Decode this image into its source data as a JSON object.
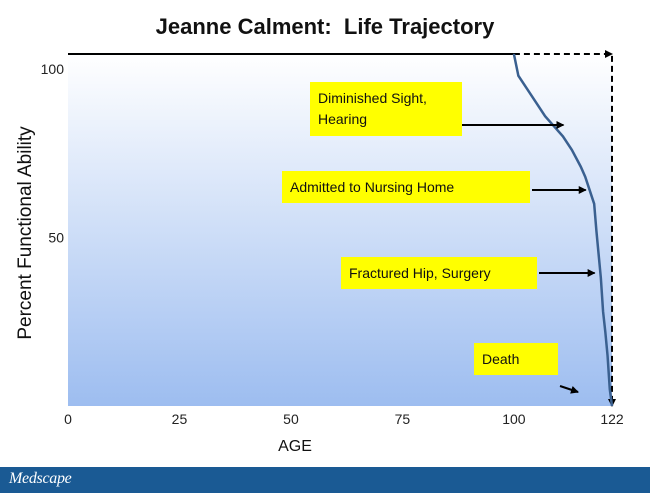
{
  "chart_data": {
    "type": "line",
    "title": "Jeanne Calment:  Life Trajectory",
    "xlabel": "AGE",
    "ylabel": "Percent Functional Ability",
    "xlim": [
      0,
      122
    ],
    "ylim": [
      0,
      100
    ],
    "x_ticks": [
      "0",
      "25",
      "50",
      "75",
      "100",
      "122"
    ],
    "y_ticks": [
      "50",
      "100"
    ],
    "series": [
      {
        "x": [
          0,
          100,
          101,
          103,
          105,
          107,
          109,
          111,
          113,
          115,
          116,
          117,
          118,
          118.5,
          119,
          119.5,
          120,
          120.5,
          121,
          121.5,
          122
        ],
        "y": [
          100,
          100,
          98,
          94,
          90,
          86,
          83,
          80,
          76,
          71,
          68,
          64,
          60,
          52,
          45,
          38,
          28,
          22,
          15,
          5,
          0
        ],
        "color": "#3a6090"
      }
    ],
    "projection": {
      "style": "dashed",
      "points": [
        [
          100,
          100
        ],
        [
          122,
          100
        ],
        [
          122,
          0
        ]
      ]
    },
    "annotations": [
      {
        "lines": [
          "Diminished Sight,",
          "Hearing"
        ],
        "arrow_to": [
          112,
          82
        ]
      },
      {
        "lines": [
          "Admitted to Nursing Home"
        ],
        "arrow_to": [
          117,
          65
        ]
      },
      {
        "lines": [
          "Fractured Hip, Surgery"
        ],
        "arrow_to": [
          119,
          40
        ]
      },
      {
        "lines": [
          "Death"
        ],
        "arrow_to": [
          121,
          5
        ]
      }
    ],
    "plot_background": [
      "#ffffff",
      "#9dbdf0"
    ],
    "annotation_fill": "#ffff00"
  },
  "footer": {
    "brand": "Medscape",
    "color": "#1a5a94"
  }
}
